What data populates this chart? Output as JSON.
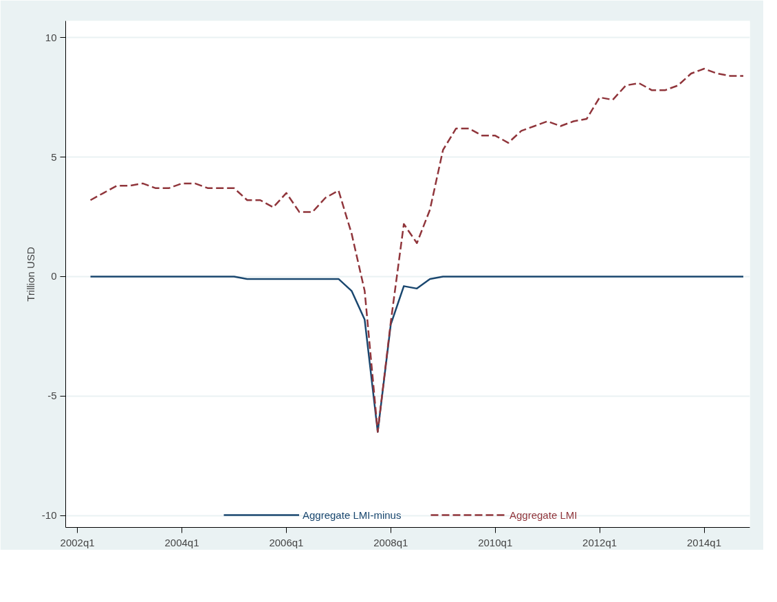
{
  "chart_data": {
    "type": "line",
    "ylabel": "Trillion USD",
    "categories": [
      "2002q1",
      null,
      null,
      null,
      null,
      null,
      null,
      null,
      "2004q1",
      null,
      null,
      null,
      null,
      null,
      null,
      null,
      "2006q1",
      null,
      null,
      null,
      null,
      null,
      null,
      null,
      "2008q1",
      null,
      null,
      null,
      null,
      null,
      null,
      null,
      "2010q1",
      null,
      null,
      null,
      null,
      null,
      null,
      null,
      "2012q1",
      null,
      null,
      null,
      null,
      null,
      null,
      null,
      "2014q1",
      null,
      null,
      null
    ],
    "series": [
      {
        "name": "Aggregate LMI-minus",
        "color": "#1a476f",
        "line_style": "solid",
        "values": [
          null,
          0,
          0,
          0,
          0,
          0,
          0,
          0,
          0,
          0,
          0,
          0,
          0,
          -0.1,
          -0.1,
          -0.1,
          -0.1,
          -0.1,
          -0.1,
          -0.1,
          -0.1,
          -0.6,
          -1.8,
          -6.5,
          -2.0,
          -0.4,
          -0.5,
          -0.1,
          0,
          0,
          0,
          0,
          0,
          0,
          0,
          0,
          0,
          0,
          0,
          0,
          0,
          0,
          0,
          0,
          0,
          0,
          0,
          0,
          0,
          0,
          0,
          0
        ]
      },
      {
        "name": "Aggregate LMI",
        "color": "#90353b",
        "line_style": "dashed",
        "values": [
          null,
          3.2,
          3.5,
          3.8,
          3.8,
          3.9,
          3.7,
          3.7,
          3.9,
          3.9,
          3.7,
          3.7,
          3.7,
          3.2,
          3.2,
          2.9,
          3.5,
          2.7,
          2.7,
          3.3,
          3.6,
          1.8,
          -0.6,
          -6.5,
          -1.9,
          2.2,
          1.4,
          2.8,
          5.3,
          6.2,
          6.2,
          5.9,
          5.9,
          5.6,
          6.1,
          6.3,
          6.5,
          6.3,
          6.5,
          6.6,
          7.5,
          7.4,
          8.0,
          8.1,
          7.8,
          7.8,
          8.0,
          8.5,
          8.7,
          8.5,
          8.4,
          8.4
        ]
      }
    ],
    "ylim": [
      -10.5,
      10.7
    ],
    "yticks": [
      -10,
      -5,
      0,
      5,
      10
    ],
    "grid": "y",
    "legend": "bottom",
    "marker": "none"
  }
}
